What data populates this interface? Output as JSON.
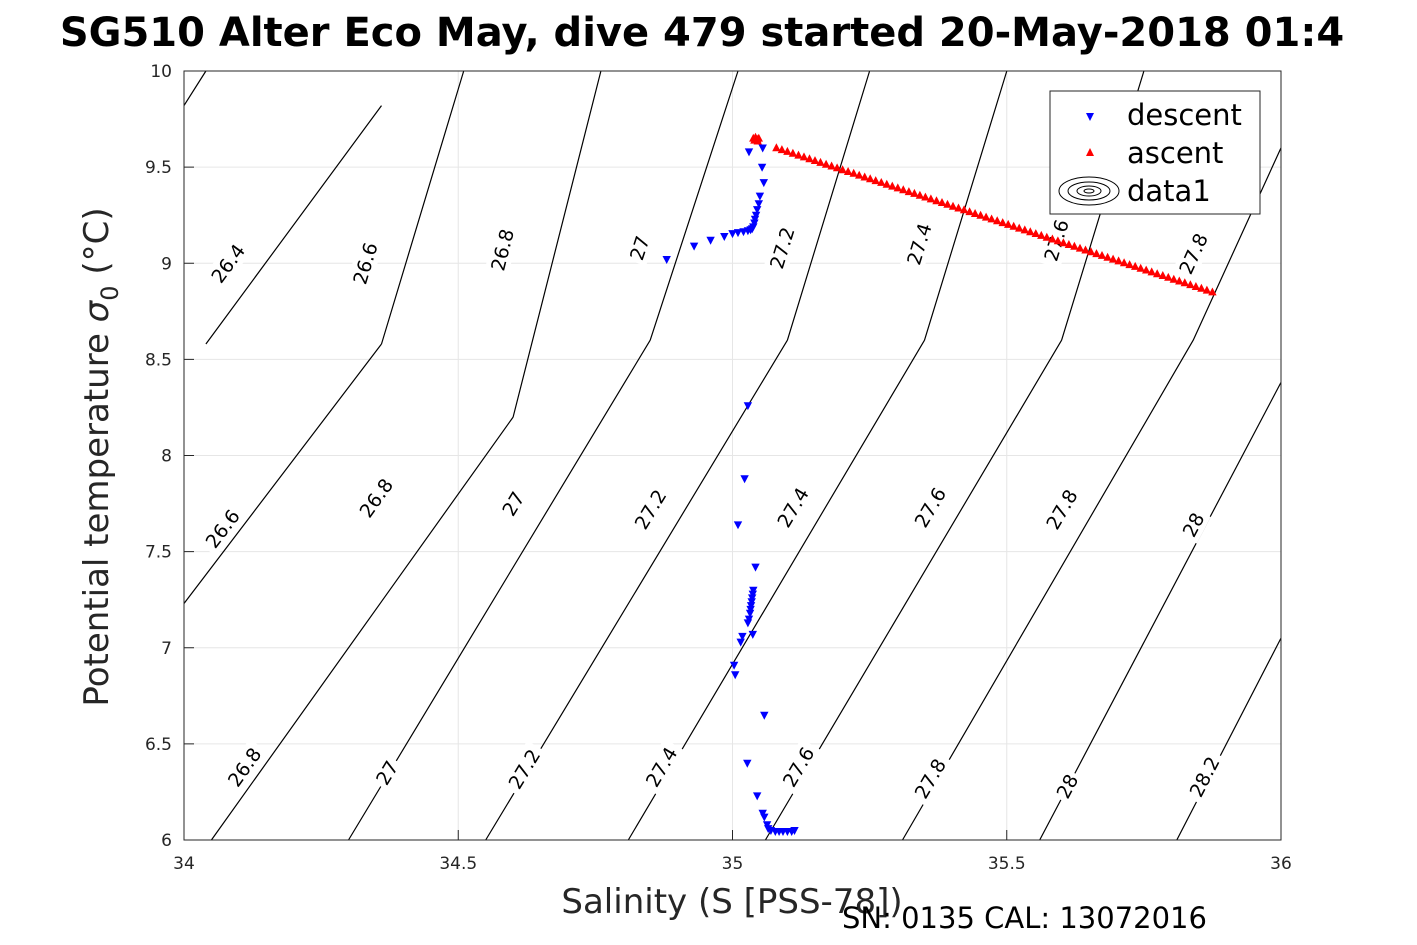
{
  "chart_data": {
    "type": "scatter",
    "title": "SG510 Alter Eco May, dive 479 started 20-May-2018 01:4",
    "xlabel": "Salinity (S [PSS-78])",
    "ylabel_main": "Potential temperature ",
    "ylabel_sigma": "σ",
    "ylabel_sub": "0",
    "ylabel_unit": " (°C)",
    "footer": "SN: 0135  CAL: 13072016",
    "xlim": [
      34,
      36
    ],
    "ylim": [
      6,
      10
    ],
    "xticks": [
      "34",
      "34.5",
      "35",
      "35.5",
      "36"
    ],
    "yticks": [
      "6",
      "6.5",
      "7",
      "7.5",
      "8",
      "8.5",
      "9",
      "9.5",
      "10"
    ],
    "grid": true,
    "legend_position": "top-right",
    "legend": [
      "descent",
      "ascent",
      "data1"
    ],
    "series": [
      {
        "name": "descent",
        "marker": "triangle-down",
        "color": "#0000ff",
        "points": [
          [
            34.88,
            9.02
          ],
          [
            34.93,
            9.09
          ],
          [
            34.96,
            9.12
          ],
          [
            34.985,
            9.14
          ],
          [
            35.0,
            9.155
          ],
          [
            35.01,
            9.16
          ],
          [
            35.02,
            9.165
          ],
          [
            35.028,
            9.17
          ],
          [
            35.033,
            9.175
          ],
          [
            35.036,
            9.18
          ],
          [
            35.038,
            9.19
          ],
          [
            35.04,
            9.21
          ],
          [
            35.041,
            9.23
          ],
          [
            35.043,
            9.25
          ],
          [
            35.045,
            9.28
          ],
          [
            35.048,
            9.31
          ],
          [
            35.05,
            9.35
          ],
          [
            35.057,
            9.42
          ],
          [
            35.054,
            9.5
          ],
          [
            35.03,
            9.58
          ],
          [
            35.055,
            9.6
          ],
          [
            35.028,
            8.26
          ],
          [
            35.022,
            7.88
          ],
          [
            35.01,
            7.64
          ],
          [
            35.042,
            7.42
          ],
          [
            35.038,
            7.3
          ],
          [
            35.037,
            7.28
          ],
          [
            35.036,
            7.26
          ],
          [
            35.035,
            7.24
          ],
          [
            35.034,
            7.22
          ],
          [
            35.033,
            7.2
          ],
          [
            35.032,
            7.18
          ],
          [
            35.03,
            7.15
          ],
          [
            35.028,
            7.13
          ],
          [
            35.037,
            7.07
          ],
          [
            35.018,
            7.06
          ],
          [
            35.015,
            7.03
          ],
          [
            35.003,
            6.91
          ],
          [
            35.005,
            6.86
          ],
          [
            35.058,
            6.65
          ],
          [
            35.027,
            6.4
          ],
          [
            35.045,
            6.23
          ],
          [
            35.055,
            6.14
          ],
          [
            35.058,
            6.12
          ],
          [
            35.063,
            6.08
          ],
          [
            35.065,
            6.06
          ],
          [
            35.07,
            6.05
          ],
          [
            35.078,
            6.045
          ],
          [
            35.085,
            6.045
          ],
          [
            35.092,
            6.045
          ],
          [
            35.1,
            6.045
          ],
          [
            35.108,
            6.045
          ],
          [
            35.113,
            6.05
          ]
        ]
      },
      {
        "name": "ascent",
        "marker": "triangle-up",
        "color": "#ff0000",
        "line_from": [
          35.08,
          9.6
        ],
        "line_to": [
          35.875,
          8.85
        ],
        "line_count": 80,
        "points": [
          [
            35.038,
            9.65
          ],
          [
            35.04,
            9.64
          ],
          [
            35.042,
            9.655
          ],
          [
            35.045,
            9.645
          ],
          [
            35.046,
            9.635
          ],
          [
            35.048,
            9.65
          ]
        ]
      }
    ],
    "contours": [
      {
        "label": "26.4",
        "bands": [
          {
            "s": [
              34.0,
              34.04
            ],
            "t": [
              9.82,
              10.0
            ]
          },
          {
            "s": [
              34.04,
              34.36
            ],
            "t": [
              8.58,
              9.82
            ]
          }
        ],
        "labels": [
          {
            "s": 34.08,
            "t": 9.0
          }
        ]
      },
      {
        "label": "26.6",
        "bands": [
          {
            "s": [
              34.0,
              34.36
            ],
            "t": [
              7.23,
              8.58
            ]
          },
          {
            "s": [
              34.36,
              34.51
            ],
            "t": [
              8.58,
              10.0
            ]
          }
        ],
        "labels": [
          {
            "s": 34.07,
            "t": 7.62
          },
          {
            "s": 34.33,
            "t": 9.0
          }
        ]
      },
      {
        "label": "26.8",
        "bands": [
          {
            "s": [
              34.05,
              34.6
            ],
            "t": [
              6.0,
              8.2
            ]
          },
          {
            "s": [
              34.6,
              34.76
            ],
            "t": [
              8.2,
              10.0
            ]
          }
        ],
        "labels": [
          {
            "s": 34.11,
            "t": 6.38
          },
          {
            "s": 34.35,
            "t": 7.78
          },
          {
            "s": 34.58,
            "t": 9.07
          }
        ]
      },
      {
        "label": "27",
        "bands": [
          {
            "s": [
              34.3,
              34.85
            ],
            "t": [
              6.0,
              8.6
            ]
          },
          {
            "s": [
              34.85,
              35.01
            ],
            "t": [
              8.6,
              10.0
            ]
          }
        ],
        "labels": [
          {
            "s": 34.37,
            "t": 6.35
          },
          {
            "s": 34.6,
            "t": 7.75
          },
          {
            "s": 34.83,
            "t": 9.08
          }
        ]
      },
      {
        "label": "27.2",
        "bands": [
          {
            "s": [
              34.55,
              35.1
            ],
            "t": [
              6.0,
              8.6
            ]
          },
          {
            "s": [
              35.1,
              35.25
            ],
            "t": [
              8.6,
              10.0
            ]
          }
        ],
        "labels": [
          {
            "s": 34.62,
            "t": 6.37
          },
          {
            "s": 34.85,
            "t": 7.72
          },
          {
            "s": 35.09,
            "t": 9.08
          }
        ]
      },
      {
        "label": "27.4",
        "bands": [
          {
            "s": [
              34.81,
              35.35
            ],
            "t": [
              6.0,
              8.6
            ]
          },
          {
            "s": [
              35.35,
              35.5
            ],
            "t": [
              8.6,
              10.0
            ]
          }
        ],
        "labels": [
          {
            "s": 34.87,
            "t": 6.38
          },
          {
            "s": 35.11,
            "t": 7.73
          },
          {
            "s": 35.34,
            "t": 9.1
          }
        ]
      },
      {
        "label": "27.6",
        "bands": [
          {
            "s": [
              35.06,
              35.6
            ],
            "t": [
              6.0,
              8.6
            ]
          },
          {
            "s": [
              35.6,
              35.75
            ],
            "t": [
              8.6,
              10.0
            ]
          }
        ],
        "labels": [
          {
            "s": 35.12,
            "t": 6.38
          },
          {
            "s": 35.36,
            "t": 7.73
          },
          {
            "s": 35.59,
            "t": 9.12
          }
        ]
      },
      {
        "label": "27.8",
        "bands": [
          {
            "s": [
              35.31,
              35.84
            ],
            "t": [
              6.0,
              8.6
            ]
          },
          {
            "s": [
              35.84,
              36.0
            ],
            "t": [
              8.6,
              9.6
            ]
          }
        ],
        "labels": [
          {
            "s": 35.36,
            "t": 6.32
          },
          {
            "s": 35.6,
            "t": 7.72
          },
          {
            "s": 35.84,
            "t": 9.05
          }
        ]
      },
      {
        "label": "28",
        "bands": [
          {
            "s": [
              35.56,
              36.0
            ],
            "t": [
              6.0,
              8.38
            ]
          }
        ],
        "labels": [
          {
            "s": 35.61,
            "t": 6.28
          },
          {
            "s": 35.84,
            "t": 7.64
          }
        ]
      },
      {
        "label": "28.2",
        "bands": [
          {
            "s": [
              35.81,
              36.0
            ],
            "t": [
              6.0,
              7.05
            ]
          }
        ],
        "labels": [
          {
            "s": 35.86,
            "t": 6.33
          }
        ]
      }
    ]
  }
}
